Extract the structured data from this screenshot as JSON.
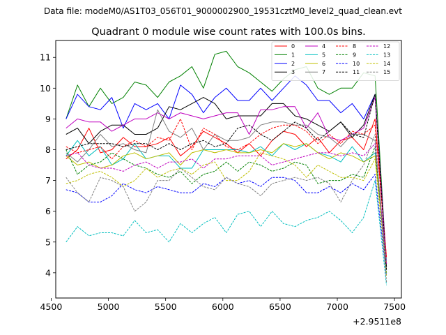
{
  "chart_data": {
    "type": "line",
    "suptitle": "Data file: modeM0/AS1T03_056T01_9000002900_19531cztM0_level2_quad_clean.evt",
    "title": "Quadrant 0 module wise count rates with 100.0s bins.",
    "xlabel": "",
    "ylabel": "",
    "x_offset_label": "+2.9511e8",
    "xlim": [
      4540,
      7560
    ],
    "ylim": [
      3.18,
      11.55
    ],
    "xticks": [
      4500,
      5000,
      5500,
      6000,
      6500,
      7000,
      7500
    ],
    "yticks": [
      4,
      5,
      6,
      7,
      8,
      9,
      10,
      11
    ],
    "legend_location": "top-right",
    "legend_columns": 4,
    "x": [
      4630,
      4730,
      4830,
      4930,
      5030,
      5130,
      5230,
      5330,
      5430,
      5530,
      5630,
      5730,
      5830,
      5930,
      6030,
      6130,
      6230,
      6330,
      6430,
      6530,
      6630,
      6730,
      6830,
      6930,
      7030,
      7130,
      7230,
      7330,
      7430
    ],
    "series": [
      {
        "name": "0",
        "color": "#ff0000",
        "dash": "solid",
        "values": [
          7.7,
          8.0,
          8.7,
          7.9,
          8.0,
          8.4,
          8.1,
          8.1,
          8.2,
          8.4,
          7.8,
          8.1,
          8.6,
          8.4,
          8.2,
          7.9,
          8.2,
          7.8,
          8.3,
          8.6,
          8.5,
          8.1,
          8.4,
          7.9,
          8.3,
          8.4,
          8.0,
          9.0,
          4.5
        ]
      },
      {
        "name": "1",
        "color": "#008000",
        "dash": "solid",
        "values": [
          9.0,
          10.1,
          9.4,
          10.0,
          9.5,
          9.7,
          10.2,
          10.1,
          9.7,
          10.2,
          10.4,
          10.7,
          10.0,
          11.1,
          11.2,
          10.7,
          10.5,
          10.2,
          9.9,
          10.3,
          10.6,
          10.7,
          10.0,
          9.8,
          10.0,
          10.0,
          10.5,
          10.4,
          4.2
        ]
      },
      {
        "name": "2",
        "color": "#0000ff",
        "dash": "solid",
        "values": [
          9.0,
          9.8,
          9.4,
          9.3,
          9.7,
          8.7,
          9.5,
          9.3,
          9.5,
          9.0,
          10.1,
          9.8,
          9.2,
          9.7,
          10.0,
          9.6,
          9.6,
          10.0,
          9.6,
          10.0,
          10.4,
          10.1,
          9.6,
          9.6,
          9.2,
          9.5,
          9.0,
          9.8,
          4.3
        ]
      },
      {
        "name": "3",
        "color": "#000000",
        "dash": "solid",
        "values": [
          8.5,
          8.7,
          8.2,
          8.6,
          8.8,
          8.8,
          8.5,
          8.5,
          8.7,
          9.4,
          9.3,
          9.5,
          9.7,
          9.5,
          9.0,
          9.1,
          9.1,
          9.1,
          9.5,
          9.5,
          9.1,
          9.0,
          8.8,
          8.6,
          8.9,
          8.4,
          8.8,
          9.8,
          4.2
        ]
      },
      {
        "name": "4",
        "color": "#bf00bf",
        "dash": "solid",
        "values": [
          8.7,
          9.0,
          8.9,
          8.9,
          8.6,
          8.8,
          9.0,
          9.0,
          9.2,
          9.0,
          9.2,
          9.1,
          9.0,
          9.1,
          9.2,
          9.2,
          8.5,
          9.3,
          9.3,
          9.4,
          9.4,
          8.7,
          9.2,
          8.4,
          8.3,
          8.5,
          8.7,
          9.7,
          4.3
        ]
      },
      {
        "name": "5",
        "color": "#00bfbf",
        "dash": "solid",
        "values": [
          7.8,
          8.3,
          7.8,
          8.1,
          7.5,
          7.7,
          8.2,
          7.7,
          7.8,
          7.8,
          7.4,
          7.4,
          8.0,
          8.0,
          8.0,
          8.0,
          7.9,
          8.1,
          7.8,
          8.2,
          8.0,
          8.2,
          7.9,
          7.8,
          7.6,
          8.1,
          7.6,
          7.9,
          4.4
        ]
      },
      {
        "name": "6",
        "color": "#bfbf00",
        "dash": "solid",
        "values": [
          7.8,
          7.5,
          7.6,
          7.4,
          7.5,
          7.8,
          7.9,
          7.7,
          7.8,
          7.9,
          7.5,
          7.9,
          8.0,
          7.9,
          8.0,
          7.9,
          7.9,
          8.0,
          7.9,
          8.2,
          8.1,
          8.2,
          7.9,
          7.7,
          7.9,
          7.8,
          7.6,
          7.8,
          4.3
        ]
      },
      {
        "name": "7",
        "color": "#808080",
        "dash": "solid",
        "values": [
          7.9,
          7.6,
          8.0,
          8.5,
          8.1,
          8.2,
          8.0,
          7.9,
          9.3,
          8.6,
          8.4,
          8.7,
          8.0,
          8.5,
          8.3,
          8.3,
          8.4,
          8.8,
          8.9,
          8.9,
          8.8,
          8.8,
          8.5,
          8.4,
          8.1,
          8.5,
          8.5,
          8.3,
          4.1
        ]
      },
      {
        "name": "8",
        "color": "#ff0000",
        "dash": "dashed",
        "values": [
          8.1,
          7.9,
          8.0,
          8.1,
          7.7,
          8.1,
          8.3,
          8.1,
          8.4,
          8.3,
          9.0,
          8.0,
          8.7,
          8.5,
          8.1,
          8.0,
          8.2,
          8.5,
          8.7,
          8.8,
          8.8,
          8.6,
          8.2,
          8.5,
          8.2,
          8.6,
          8.5,
          8.8,
          4.5
        ]
      },
      {
        "name": "9",
        "color": "#008000",
        "dash": "dashed",
        "values": [
          8.0,
          7.2,
          7.5,
          7.6,
          7.9,
          7.7,
          7.5,
          7.4,
          7.2,
          7.1,
          7.3,
          6.9,
          7.2,
          7.3,
          7.6,
          7.3,
          7.6,
          7.5,
          7.3,
          7.4,
          7.6,
          7.5,
          6.9,
          7.0,
          7.0,
          7.2,
          7.1,
          8.1,
          4.0
        ]
      },
      {
        "name": "10",
        "color": "#0000ff",
        "dash": "dashed",
        "values": [
          6.7,
          6.6,
          6.3,
          6.3,
          6.5,
          6.9,
          6.7,
          6.6,
          6.8,
          6.7,
          6.6,
          6.6,
          6.9,
          6.8,
          7.1,
          6.9,
          7.0,
          6.8,
          7.1,
          7.1,
          7.0,
          6.6,
          6.6,
          6.8,
          6.6,
          6.9,
          6.7,
          7.2,
          3.9
        ]
      },
      {
        "name": "11",
        "color": "#000000",
        "dash": "dashed",
        "values": [
          8.0,
          8.1,
          8.2,
          8.2,
          8.2,
          8.1,
          8.2,
          8.2,
          8.0,
          8.2,
          8.0,
          8.2,
          8.3,
          8.1,
          8.2,
          8.7,
          8.8,
          8.5,
          8.3,
          8.6,
          8.9,
          8.7,
          8.3,
          8.6,
          8.9,
          8.5,
          8.4,
          9.8,
          4.1
        ]
      },
      {
        "name": "12",
        "color": "#bf00bf",
        "dash": "dashed",
        "values": [
          7.8,
          7.9,
          7.5,
          7.4,
          7.4,
          7.3,
          7.5,
          7.6,
          7.4,
          7.6,
          7.6,
          7.7,
          7.4,
          7.7,
          7.7,
          7.8,
          7.8,
          7.8,
          7.5,
          7.6,
          7.7,
          7.8,
          7.9,
          7.9,
          7.8,
          7.9,
          7.8,
          8.2,
          4.3
        ]
      },
      {
        "name": "13",
        "color": "#00bfbf",
        "dash": "dashed",
        "values": [
          5.0,
          5.5,
          5.2,
          5.3,
          5.3,
          5.2,
          5.7,
          5.3,
          5.4,
          5.0,
          5.6,
          5.3,
          5.6,
          5.8,
          5.3,
          5.9,
          6.0,
          5.5,
          6.0,
          5.6,
          5.5,
          5.7,
          5.8,
          6.0,
          5.7,
          5.3,
          5.8,
          7.0,
          3.6
        ]
      },
      {
        "name": "14",
        "color": "#bfbf00",
        "dash": "dashed",
        "values": [
          6.9,
          7.0,
          7.2,
          7.3,
          7.1,
          6.8,
          7.0,
          7.4,
          7.1,
          7.3,
          7.4,
          7.2,
          7.5,
          7.6,
          7.0,
          7.0,
          7.3,
          7.9,
          7.8,
          7.7,
          7.5,
          7.1,
          7.5,
          7.3,
          7.1,
          7.1,
          7.0,
          7.7,
          3.9
        ]
      },
      {
        "name": "15",
        "color": "#808080",
        "dash": "dashed",
        "values": [
          7.1,
          6.6,
          6.3,
          7.1,
          7.0,
          6.8,
          6.0,
          6.3,
          7.0,
          7.0,
          7.4,
          7.1,
          6.8,
          6.7,
          7.1,
          6.9,
          6.8,
          6.5,
          6.9,
          7.0,
          7.1,
          7.0,
          7.1,
          6.9,
          6.3,
          7.0,
          7.5,
          8.5,
          3.7
        ]
      }
    ]
  }
}
